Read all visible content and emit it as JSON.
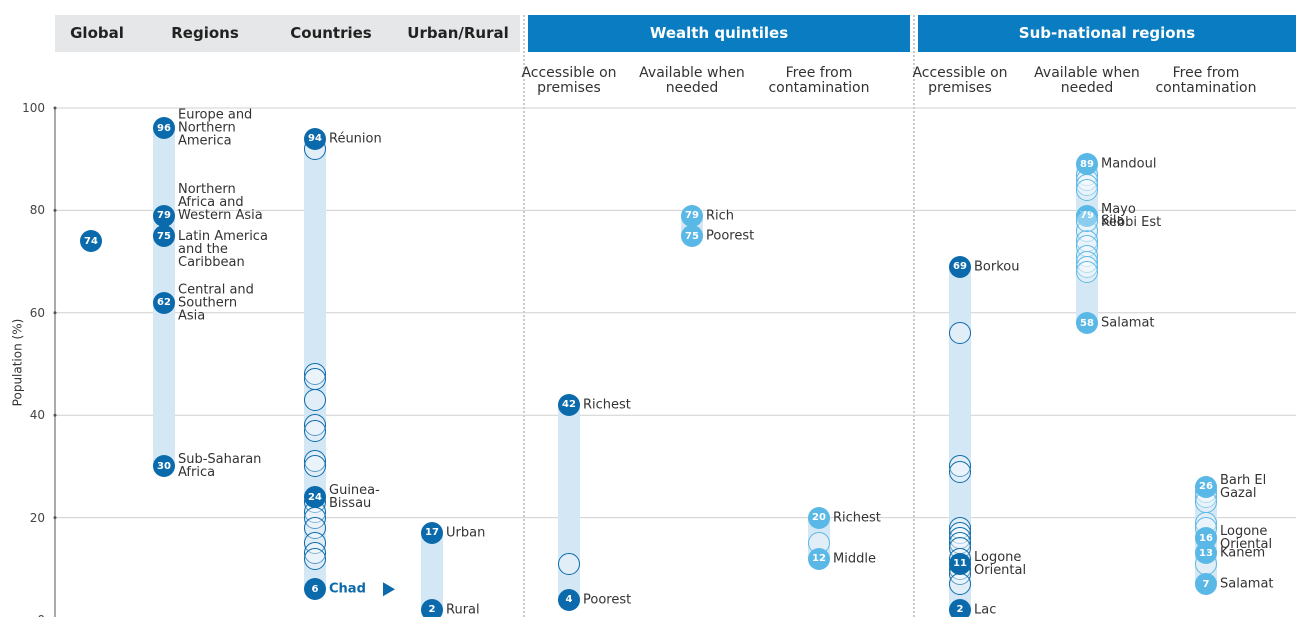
{
  "chart_data": {
    "type": "dot_range",
    "ylabel": "Population (%)",
    "ylim": [
      0,
      100
    ],
    "yticks": [
      0,
      20,
      40,
      60,
      80,
      100
    ],
    "grid": true,
    "panels": [
      {
        "title": "Global",
        "columns": [
          {
            "color": "#0b6aab",
            "points": [
              {
                "value": 74
              }
            ],
            "others": []
          }
        ]
      },
      {
        "title": "Regions",
        "columns": [
          {
            "color": "#0b6aab",
            "points": [
              {
                "value": 96,
                "label": "Europe and Northern America"
              },
              {
                "value": 79,
                "label": "Northern Africa and Western Asia"
              },
              {
                "value": 75,
                "label": "Latin America and the Caribbean"
              },
              {
                "value": 62,
                "label": "Central and Southern Asia"
              },
              {
                "value": 30,
                "label": "Sub-Saharan Africa"
              }
            ],
            "others": []
          }
        ]
      },
      {
        "title": "Countries",
        "columns": [
          {
            "color": "#0b6aab",
            "points": [
              {
                "value": 94,
                "label": "Réunion"
              },
              {
                "value": 24,
                "label": "Guinea-Bissau"
              },
              {
                "value": 6,
                "label": "Chad",
                "highlight": true
              }
            ],
            "others": [
              92,
              48,
              47,
              43,
              38,
              37,
              31,
              30,
              23,
              21,
              20,
              18,
              15,
              13,
              12
            ]
          }
        ]
      },
      {
        "title": "Urban/Rural",
        "columns": [
          {
            "color": "#0b6aab",
            "points": [
              {
                "value": 17,
                "label": "Urban"
              },
              {
                "value": 2,
                "label": "Rural"
              }
            ],
            "others": []
          }
        ]
      },
      {
        "title": "Wealth quintiles",
        "columns": [
          {
            "title": "Accessible on premises",
            "color": "#0b6aab",
            "points": [
              {
                "value": 42,
                "label": "Richest"
              },
              {
                "value": 4,
                "label": "Poorest"
              }
            ],
            "others": [
              11
            ]
          },
          {
            "title": "Available when needed",
            "color": "#5ab8e6",
            "points": [
              {
                "value": 79,
                "label": "Rich"
              },
              {
                "value": 75,
                "label": "Poorest"
              }
            ],
            "others": []
          },
          {
            "title": "Free from contamination",
            "color": "#5ab8e6",
            "points": [
              {
                "value": 20,
                "label": "Richest"
              },
              {
                "value": 12,
                "label": "Middle"
              }
            ],
            "others": [
              15
            ]
          }
        ]
      },
      {
        "title": "Sub-national regions",
        "columns": [
          {
            "title": "Accessible on premises",
            "color": "#0b6aab",
            "points": [
              {
                "value": 69,
                "label": "Borkou"
              },
              {
                "value": 11,
                "label": "Logone Oriental"
              },
              {
                "value": 2,
                "label": "Lac"
              }
            ],
            "others": [
              56,
              30,
              29,
              18,
              17,
              16,
              15,
              14,
              12,
              10,
              9,
              7
            ]
          },
          {
            "title": "Available when needed",
            "color": "#5ab8e6",
            "points": [
              {
                "value": 89,
                "label": "Mandoul"
              },
              {
                "value": 79,
                "label": "Mayo Kebbi Est"
              },
              {
                "value": 78,
                "label": "Sila",
                "numbered": false
              },
              {
                "value": 58,
                "label": "Salamat"
              }
            ],
            "others": [
              87,
              86,
              85,
              84,
              76,
              74,
              73,
              71,
              70,
              69,
              68
            ]
          },
          {
            "title": "Free from contamination",
            "color": "#5ab8e6",
            "points": [
              {
                "value": 26,
                "label": "Barh El Gazal"
              },
              {
                "value": 16,
                "label": "Logone Oriental"
              },
              {
                "value": 13,
                "label": "Kanem"
              },
              {
                "value": 7,
                "label": "Salamat"
              }
            ],
            "others": [
              25,
              24,
              23,
              19,
              18,
              11
            ]
          }
        ]
      }
    ]
  }
}
